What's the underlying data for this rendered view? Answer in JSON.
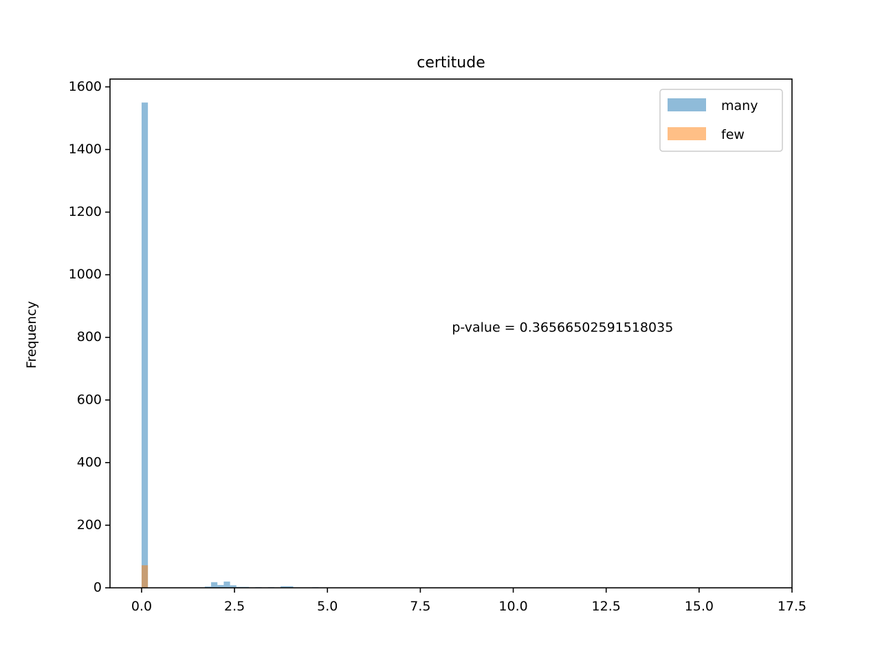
{
  "chart_data": {
    "type": "bar",
    "title": "certitude",
    "xlabel": "",
    "ylabel": "Frequency",
    "xlim": [
      -0.85,
      17.5
    ],
    "ylim": [
      0,
      1625
    ],
    "x_ticks": [
      0.0,
      2.5,
      5.0,
      7.5,
      10.0,
      12.5,
      15.0,
      17.5
    ],
    "x_tick_labels": [
      "0.0",
      "2.5",
      "5.0",
      "7.5",
      "10.0",
      "12.5",
      "15.0",
      "17.5"
    ],
    "y_ticks": [
      0,
      200,
      400,
      600,
      800,
      1000,
      1200,
      1400,
      1600
    ],
    "y_tick_labels": [
      "0",
      "200",
      "400",
      "600",
      "800",
      "1000",
      "1200",
      "1400",
      "1600"
    ],
    "legend_position": "top-right",
    "grid": false,
    "series": [
      {
        "name": "many",
        "color": "#1f77b4",
        "opacity": 0.5,
        "bins": [
          {
            "x0": 0.0,
            "x1": 0.17,
            "value": 1550
          },
          {
            "x0": 1.7,
            "x1": 1.87,
            "value": 4
          },
          {
            "x0": 1.87,
            "x1": 2.04,
            "value": 18
          },
          {
            "x0": 2.04,
            "x1": 2.21,
            "value": 9
          },
          {
            "x0": 2.21,
            "x1": 2.38,
            "value": 20
          },
          {
            "x0": 2.38,
            "x1": 2.55,
            "value": 8
          },
          {
            "x0": 2.55,
            "x1": 2.72,
            "value": 3
          },
          {
            "x0": 2.72,
            "x1": 2.89,
            "value": 3
          },
          {
            "x0": 3.06,
            "x1": 3.23,
            "value": 2
          },
          {
            "x0": 3.4,
            "x1": 3.57,
            "value": 2
          },
          {
            "x0": 3.74,
            "x1": 3.91,
            "value": 5
          },
          {
            "x0": 3.91,
            "x1": 4.08,
            "value": 5
          },
          {
            "x0": 4.59,
            "x1": 4.76,
            "value": 2
          }
        ]
      },
      {
        "name": "few",
        "color": "#ff7f0e",
        "opacity": 0.5,
        "bins": [
          {
            "x0": 0.0,
            "x1": 0.17,
            "value": 72
          }
        ]
      }
    ],
    "annotations": [
      {
        "text": "p-value = 0.36566502591518035",
        "x": 8.35,
        "y": 830
      }
    ]
  }
}
